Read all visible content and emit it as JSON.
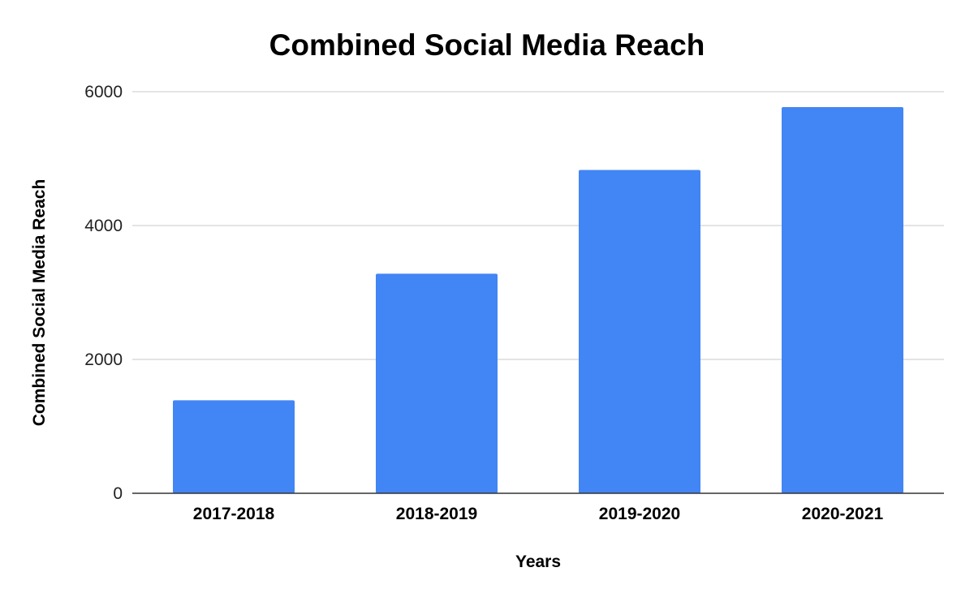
{
  "chart_data": {
    "type": "bar",
    "title": "Combined Social Media Reach",
    "xlabel": "Years",
    "ylabel": "Combined Social Media Reach",
    "categories": [
      "2017-2018",
      "2018-2019",
      "2019-2020",
      "2020-2021"
    ],
    "series": [
      {
        "values": [
          1390,
          3280,
          4830,
          5770
        ],
        "color": "#4285f4"
      }
    ],
    "ylim": [
      0,
      6000
    ],
    "yticks": [
      "0",
      "2000",
      "4000",
      "6000"
    ],
    "grid": true,
    "legend": "none"
  }
}
